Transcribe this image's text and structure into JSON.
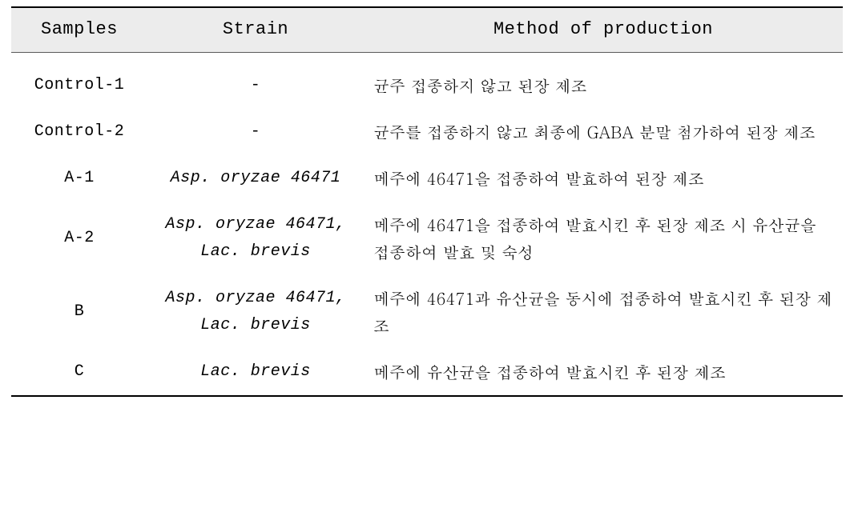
{
  "header_bg": "#ececec",
  "columns": {
    "samples": "Samples",
    "strain": "Strain",
    "method": "Method of production"
  },
  "rows": [
    {
      "sample": "Control-1",
      "strain_lines": [
        "-"
      ],
      "strain_italic": [
        false
      ],
      "method": "균주 접종하지 않고 된장 제조"
    },
    {
      "sample": "Control-2",
      "strain_lines": [
        "-"
      ],
      "strain_italic": [
        false
      ],
      "method": "균주를 접종하지 않고 최종에 GABA 분말 첨가하여 된장 제조"
    },
    {
      "sample": "A-1",
      "strain_lines": [
        "Asp. oryzae 46471"
      ],
      "strain_italic": [
        true
      ],
      "method": "메주에 46471을 접종하여 발효하여 된장 제조"
    },
    {
      "sample": "A-2",
      "strain_lines": [
        "Asp. oryzae 46471,",
        "Lac. brevis"
      ],
      "strain_italic": [
        true,
        true
      ],
      "method": "메주에 46471을 접종하여 발효시킨 후 된장 제조 시 유산균을 접종하여 발효 및 숙성"
    },
    {
      "sample": "B",
      "strain_lines": [
        "Asp. oryzae 46471,",
        "Lac. brevis"
      ],
      "strain_italic": [
        true,
        true
      ],
      "method": "메주에 46471과 유산균을 동시에 접종하여 발효시킨 후 된장 제조"
    },
    {
      "sample": "C",
      "strain_lines": [
        "Lac. brevis"
      ],
      "strain_italic": [
        true
      ],
      "method": "메주에 유산균을 접종하여 발효시킨 후 된장 제조"
    }
  ]
}
